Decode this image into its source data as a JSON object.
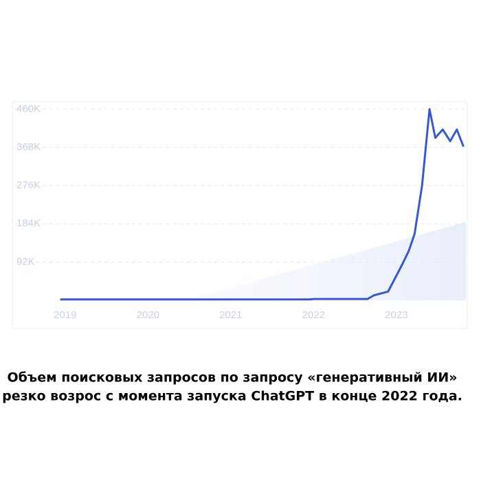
{
  "chart_data": {
    "type": "line",
    "caption": [
      "Объем поисковых запросов по запросу «генеративный ИИ»",
      "резко возрос с момента запуска ChatGPT в конце 2022 года."
    ],
    "x": [
      2018.94,
      2021.95,
      2022.0,
      2022.65,
      2022.73,
      2022.9,
      2023.07,
      2023.15,
      2023.22,
      2023.31,
      2023.4,
      2023.47,
      2023.56,
      2023.65,
      2023.73,
      2023.81
    ],
    "series": [
      {
        "color": "#3558d8",
        "values": [
          2,
          2,
          3,
          3,
          12,
          21,
          86,
          119,
          160,
          276,
          460,
          391,
          411,
          383,
          411,
          370
        ]
      }
    ],
    "xlim": [
      2018.86,
      2023.86
    ],
    "xticks": [
      2019,
      2020,
      2021,
      2022,
      2023
    ],
    "ylim": [
      0,
      478
    ],
    "yticks": [
      {
        "value": 92,
        "label": "92K"
      },
      {
        "value": 184,
        "label": "184K"
      },
      {
        "value": 276,
        "label": "276K"
      },
      {
        "value": 368,
        "label": "368K"
      },
      {
        "value": 460,
        "label": "460K"
      }
    ],
    "grid": true
  }
}
